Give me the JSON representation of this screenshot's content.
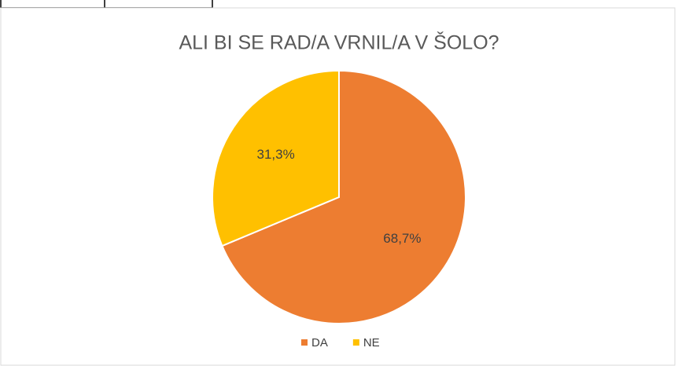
{
  "chart_data": {
    "type": "pie",
    "title": "ALI BI SE RAD/A VRNIL/A V ŠOLO?",
    "categories": [
      "DA",
      "NE"
    ],
    "values": [
      68.7,
      31.3
    ],
    "value_labels": [
      "68,7%",
      "31,3%"
    ],
    "colors": [
      "#ed7d31",
      "#ffc000"
    ],
    "legend": "bottom"
  }
}
